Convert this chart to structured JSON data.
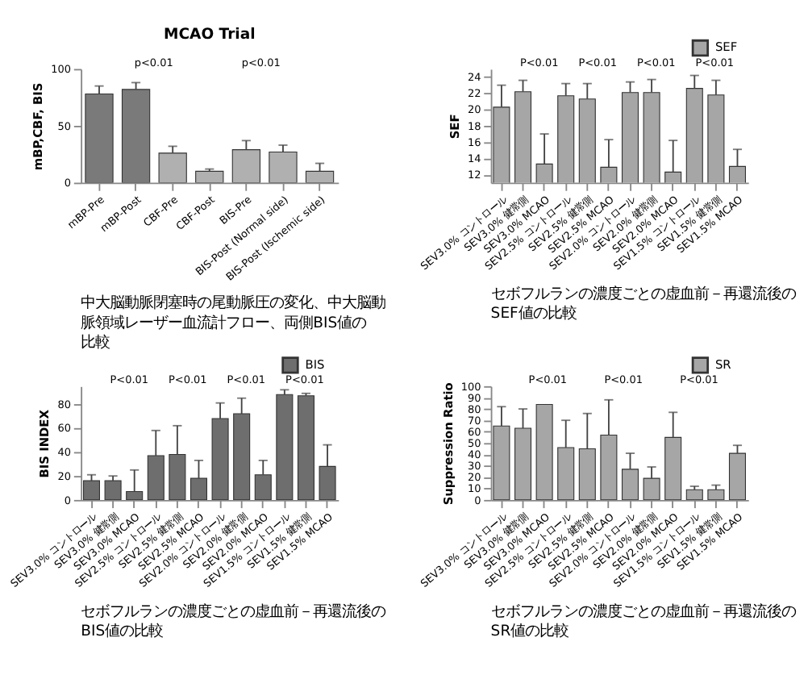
{
  "chart_data": [
    {
      "type": "bar",
      "title": "MCAO Trial",
      "ylabel": "mBP,CBF, BIS",
      "categories": [
        "mBP-Pre",
        "mBP-Post",
        "CBF-Pre",
        "CBF-Post",
        "BIS-Pre",
        "BIS-Post (Normal side)",
        "BIS-Post (Ischemic side)"
      ],
      "values": [
        78,
        82,
        26,
        10,
        29,
        27,
        10
      ],
      "colors": [
        "#7a7a7a",
        "#7a7a7a",
        "#b0b0b0",
        "#b0b0b0",
        "#b0b0b0",
        "#b0b0b0",
        "#b0b0b0"
      ],
      "errors": [
        [
          78,
          85
        ],
        [
          82,
          88
        ],
        [
          26,
          32
        ],
        [
          10,
          12
        ],
        [
          29,
          37
        ],
        [
          27,
          33
        ],
        [
          10,
          17
        ]
      ],
      "ylim": [
        0,
        100
      ],
      "yticks": [
        0,
        50,
        100
      ],
      "annotations": [
        "p<0.01",
        "p<0.01",
        "中大脳動脈閉塞時の尾動脈圧の変化、中大脳動脈領域レーザー血流計フロー、両側BIS値の比較"
      ]
    },
    {
      "type": "bar",
      "ylabel": "SEF",
      "categories": [
        "SEV3.0% コントロール",
        "SEV3.0% 健常側",
        "SEV3.0% MCAO",
        "SEV2.5% コントロール",
        "SEV2.5% 健常側",
        "SEV2.5% MCAO",
        "SEV2.0% コントロール",
        "SEV2.0% 健常側",
        "SEV2.0% MCAO",
        "SEV1.5% コントロール",
        "SEV1.5% 健常側",
        "SEV1.5% MCAO"
      ],
      "series": [
        {
          "name": "SEF",
          "color": "#a6a6a6",
          "values": [
            20.3,
            22.2,
            13.3,
            21.7,
            21.3,
            12.9,
            22.1,
            22.1,
            12.3,
            22.6,
            21.8,
            13.0
          ],
          "errors": [
            [
              20.3,
              23.0
            ],
            [
              22.2,
              23.6
            ],
            [
              13.3,
              17.0
            ],
            [
              21.7,
              23.2
            ],
            [
              21.3,
              23.2
            ],
            [
              12.9,
              16.3
            ],
            [
              22.1,
              23.4
            ],
            [
              22.1,
              23.7
            ],
            [
              12.3,
              16.2
            ],
            [
              22.6,
              24.2
            ],
            [
              21.8,
              23.6
            ],
            [
              13.0,
              15.1
            ]
          ]
        }
      ],
      "ylim": [
        11,
        25
      ],
      "yticks": [
        12,
        14,
        16,
        18,
        20,
        22,
        24
      ],
      "legend": "top right",
      "annotations": [
        "P<0.01",
        "P<0.01",
        "P<0.01",
        "P<0.01",
        "セボフルランの濃度ごとの虚血前－再還流後のSEF値の比較"
      ]
    },
    {
      "type": "bar",
      "ylabel": "BIS INDEX",
      "categories": [
        "SEV3.0% コントロール",
        "SEV3.0% 健常側",
        "SEV3.0% MCAO",
        "SEV2.5% コントロール",
        "SEV2.5% 健常側",
        "SEV2.5% MCAO",
        "SEV2.0% コントロール",
        "SEV2.0% 健常側",
        "SEV2.0% MCAO",
        "SEV1.5% コントロール",
        "SEV1.5% 健常側",
        "SEV1.5% MCAO"
      ],
      "series": [
        {
          "name": "BIS",
          "color": "#6e6e6e",
          "values": [
            16,
            16,
            7,
            37,
            38,
            18,
            68,
            72,
            21,
            88,
            87,
            28
          ],
          "errors": [
            [
              16,
              21
            ],
            [
              16,
              20
            ],
            [
              7,
              25
            ],
            [
              37,
              58
            ],
            [
              38,
              62
            ],
            [
              18,
              33
            ],
            [
              68,
              81
            ],
            [
              72,
              85
            ],
            [
              21,
              33
            ],
            [
              88,
              92
            ],
            [
              87,
              89
            ],
            [
              28,
              46
            ]
          ]
        }
      ],
      "ylim": [
        0,
        95
      ],
      "yticks": [
        0,
        20,
        40,
        60,
        80
      ],
      "legend": "top right",
      "annotations": [
        "P<0.01",
        "P<0.01",
        "P<0.01",
        "P<0.01",
        "セボフルランの濃度ごとの虚血前－再還流後のBIS値の比較"
      ]
    },
    {
      "type": "bar",
      "ylabel": "Suppression Ratio",
      "categories": [
        "SEV3.0% コントロール",
        "SEV3.0% 健常側",
        "SEV3.0% MCAO",
        "SEV2.5% コントロール",
        "SEV2.5% 健常側",
        "SEV2.5% MCAO",
        "SEV2.0% コントロール",
        "SEV2.0% 健常側",
        "SEV2.0% MCAO",
        "SEV1.5% コントロール",
        "SEV1.5% 健常側",
        "SEV1.5% MCAO"
      ],
      "series": [
        {
          "name": "SR",
          "color": "#a6a6a6",
          "values": [
            65,
            63,
            84,
            46,
            45,
            57,
            27,
            19,
            55,
            9,
            9,
            41
          ],
          "errors": [
            [
              65,
              82
            ],
            [
              63,
              80
            ],
            null,
            [
              46,
              70
            ],
            [
              45,
              76
            ],
            [
              57,
              88
            ],
            [
              27,
              41
            ],
            [
              19,
              29
            ],
            [
              55,
              77
            ],
            [
              9,
              12
            ],
            [
              9,
              13
            ],
            [
              41,
              48
            ]
          ]
        }
      ],
      "ylim": [
        0,
        100
      ],
      "yticks": [
        0,
        10,
        20,
        30,
        40,
        50,
        60,
        70,
        80,
        90,
        100
      ],
      "legend": "top right",
      "annotations": [
        "P<0.01",
        "P<0.01",
        "P<0.01",
        "セボフルランの濃度ごとの虚血前－再還流後のSR値の比較"
      ]
    }
  ]
}
